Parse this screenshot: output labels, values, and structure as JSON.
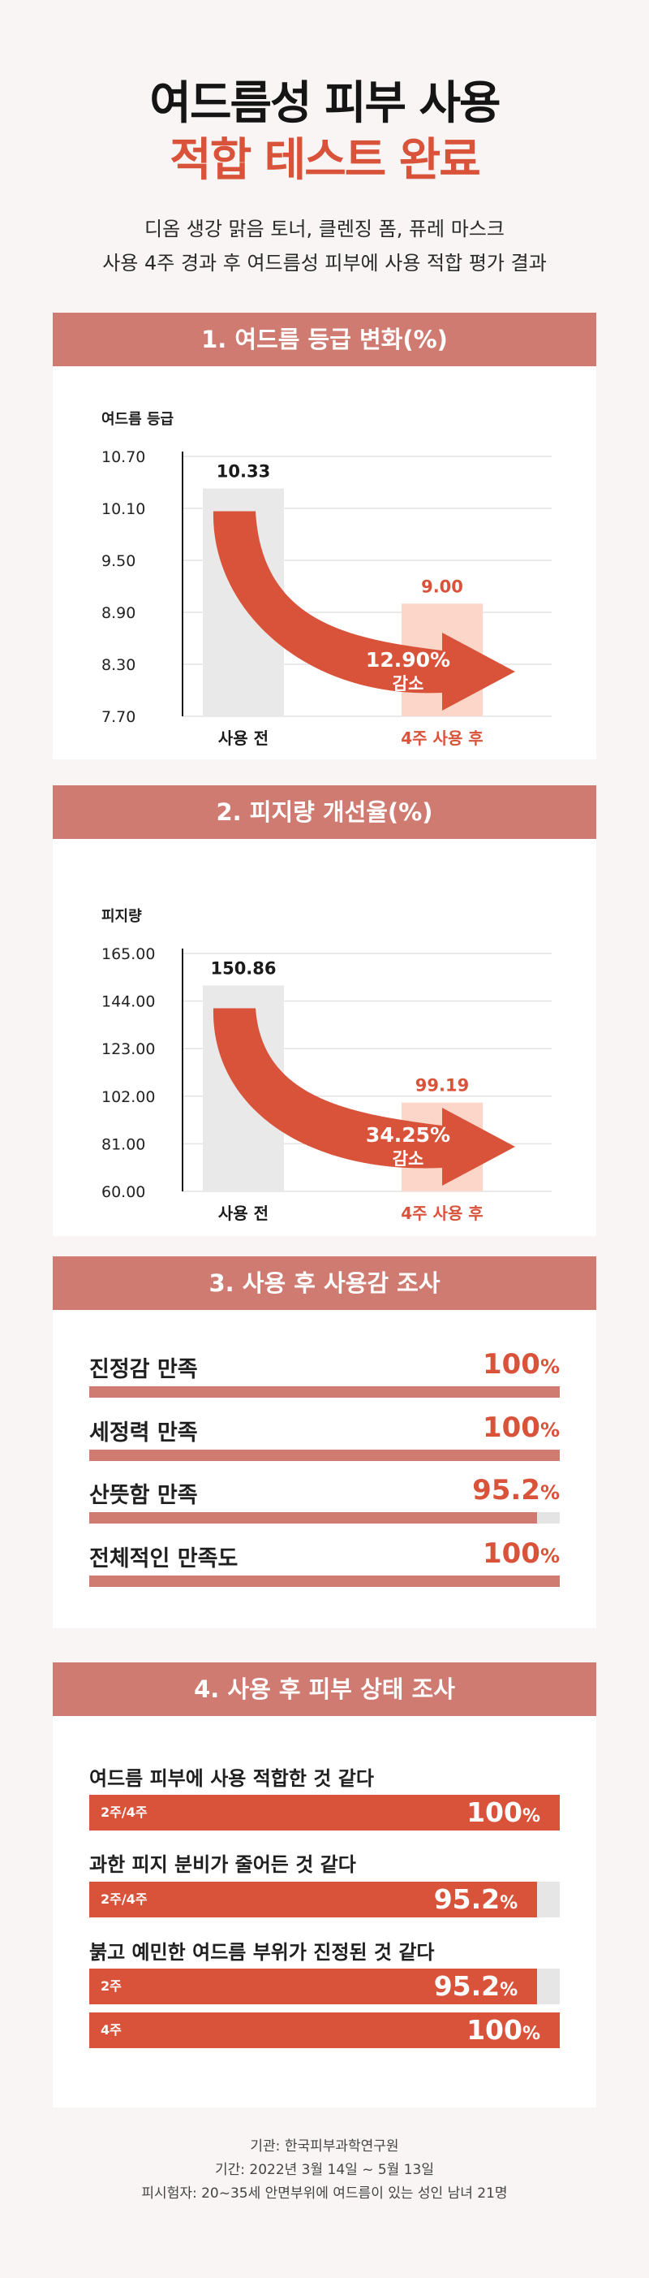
{
  "header": {
    "title_line1": "여드름성 피부 사용",
    "title_line2": "적합 테스트 완료",
    "subtitle_line1": "디옴 생강 맑음 토너, 클렌징 폼, 퓨레 마스크",
    "subtitle_line2": "사용 4주 경과 후 여드름성 피부에 사용 적합 평가 결과"
  },
  "colors": {
    "accent": "#d9533a",
    "section_header": "#cf7b72",
    "bar_before": "#e9e9e9",
    "bar_after": "#fcd6c9",
    "track": "#e4e4e4"
  },
  "section1": {
    "heading": "1. 여드름 등급 변화(%)",
    "chart": {
      "type": "bar",
      "ylabel": "여드름 등급",
      "yticks": [
        "10.70",
        "10.10",
        "9.50",
        "8.90",
        "8.30",
        "7.70"
      ],
      "ylim": [
        7.7,
        10.7
      ],
      "categories": [
        "사용 전",
        "4주 사용 후"
      ],
      "values": [
        10.33,
        9.0
      ],
      "value_labels": [
        "10.33",
        "9.00"
      ],
      "change_pct": "12.90%",
      "change_word": "감소"
    }
  },
  "section2": {
    "heading": "2. 피지량 개선율(%)",
    "chart": {
      "type": "bar",
      "ylabel": "피지량",
      "yticks": [
        "165.00",
        "144.00",
        "123.00",
        "102.00",
        "81.00",
        "60.00"
      ],
      "ylim": [
        60,
        165
      ],
      "categories": [
        "사용 전",
        "4주 사용 후"
      ],
      "values": [
        150.86,
        99.19
      ],
      "value_labels": [
        "150.86",
        "99.19"
      ],
      "change_pct": "34.25%",
      "change_word": "감소"
    }
  },
  "section3": {
    "heading": "3. 사용 후 사용감 조사",
    "rows": [
      {
        "label": "진정감 만족",
        "value": "100",
        "pct": 100
      },
      {
        "label": "세정력 만족",
        "value": "100",
        "pct": 100
      },
      {
        "label": "산뜻함 만족",
        "value": "95.2",
        "pct": 95.2
      },
      {
        "label": "전체적인 만족도",
        "value": "100",
        "pct": 100
      }
    ]
  },
  "section4": {
    "heading": "4. 사용 후 피부 상태 조사",
    "questions": [
      {
        "title": "여드름 피부에 사용 적합한 것 같다",
        "bars": [
          {
            "tag": "2주/4주",
            "value": "100",
            "pct": 100
          }
        ]
      },
      {
        "title": "과한 피지 분비가 줄어든 것 같다",
        "bars": [
          {
            "tag": "2주/4주",
            "value": "95.2",
            "pct": 95.2
          }
        ]
      },
      {
        "title": "붉고 예민한 여드름 부위가 진정된 것 같다",
        "bars": [
          {
            "tag": "2주",
            "value": "95.2",
            "pct": 95.2
          },
          {
            "tag": "4주",
            "value": "100",
            "pct": 100
          }
        ]
      }
    ],
    "percent_sign": "%"
  },
  "footer": {
    "line1": "기관: 한국피부과학연구원",
    "line2": "기간: 2022년 3월 14일 ~ 5월 13일",
    "line3": "피시험자: 20~35세 안면부위에 여드름이 있는 성인 남녀 21명"
  },
  "chart_data": [
    {
      "type": "bar",
      "title": "1. 여드름 등급 변화(%)",
      "ylabel": "여드름 등급",
      "categories": [
        "사용 전",
        "4주 사용 후"
      ],
      "values": [
        10.33,
        9.0
      ],
      "ylim": [
        7.7,
        10.7
      ],
      "annotation": "12.90% 감소"
    },
    {
      "type": "bar",
      "title": "2. 피지량 개선율(%)",
      "ylabel": "피지량",
      "categories": [
        "사용 전",
        "4주 사용 후"
      ],
      "values": [
        150.86,
        99.19
      ],
      "ylim": [
        60,
        165
      ],
      "annotation": "34.25% 감소"
    },
    {
      "type": "bar",
      "title": "3. 사용 후 사용감 조사",
      "categories": [
        "진정감 만족",
        "세정력 만족",
        "산뜻함 만족",
        "전체적인 만족도"
      ],
      "values": [
        100,
        100,
        95.2,
        100
      ],
      "ylim": [
        0,
        100
      ]
    },
    {
      "type": "bar",
      "title": "4. 사용 후 피부 상태 조사",
      "categories": [
        "여드름 피부에 사용 적합한 것 같다 (2주/4주)",
        "과한 피지 분비가 줄어든 것 같다 (2주/4주)",
        "붉고 예민한 여드름 부위가 진정된 것 같다 (2주)",
        "붉고 예민한 여드름 부위가 진정된 것 같다 (4주)"
      ],
      "values": [
        100,
        95.2,
        95.2,
        100
      ],
      "ylim": [
        0,
        100
      ]
    }
  ]
}
